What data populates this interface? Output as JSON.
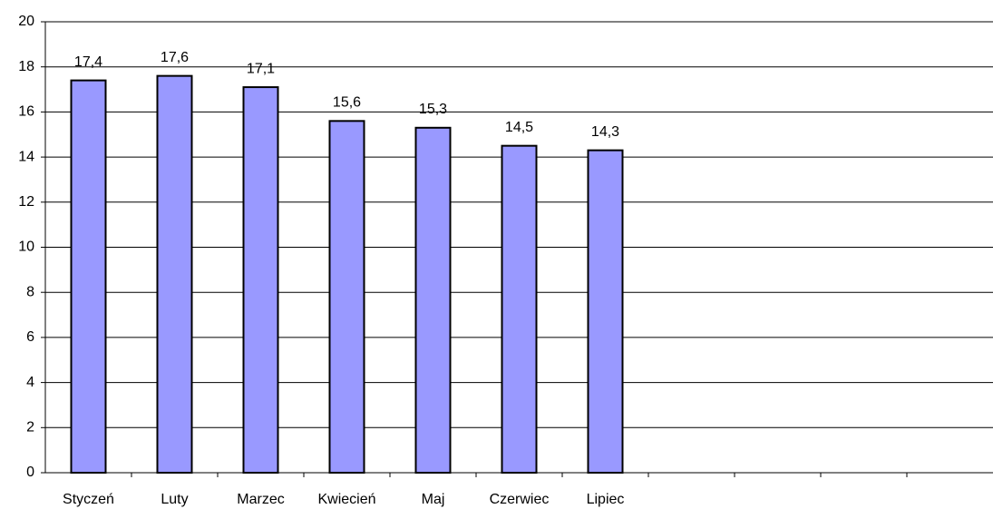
{
  "chart_data": {
    "type": "bar",
    "categories": [
      "Styczeń",
      "Luty",
      "Marzec",
      "Kwiecień",
      "Maj",
      "Czerwiec",
      "Lipiec",
      null,
      null,
      null,
      null
    ],
    "values": [
      17.4,
      17.6,
      17.1,
      15.6,
      15.3,
      14.5,
      14.3,
      null,
      null,
      null,
      null
    ],
    "value_labels": [
      "17,4",
      "17,6",
      "17,1",
      "15,6",
      "15,3",
      "14,5",
      "14,3",
      null,
      null,
      null,
      null
    ],
    "color": "#9999ff",
    "ylim": [
      0,
      20
    ],
    "yticks": [
      0,
      2,
      4,
      6,
      8,
      10,
      12,
      14,
      16,
      18,
      20
    ],
    "grid": true
  }
}
